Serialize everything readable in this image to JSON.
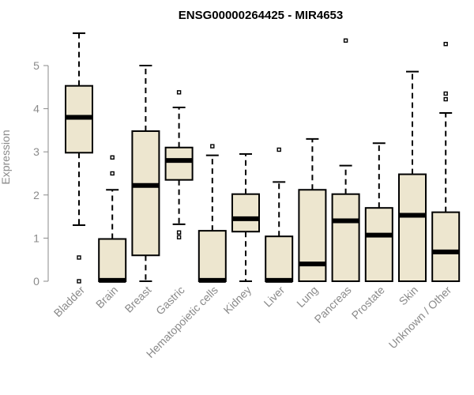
{
  "chart_data": {
    "type": "boxplot",
    "title": "ENSG00000264425 - MIR4653",
    "ylabel": "Expression",
    "xlabel": "",
    "ylim": [
      0,
      5.8
    ],
    "yticks": [
      0,
      1,
      2,
      3,
      4,
      5
    ],
    "grid": false,
    "box_fill": "#ede6cf",
    "categories": [
      "Bladder",
      "Brain",
      "Breast",
      "Gastric",
      "Hematopoietic cells",
      "Kidney",
      "Liver",
      "Lung",
      "Pancreas",
      "Prostate",
      "Skin",
      "Unknown / Other"
    ],
    "boxes": [
      {
        "category": "Bladder",
        "whisker_low": 1.3,
        "q1": 2.98,
        "median": 3.8,
        "q3": 4.53,
        "whisker_high": 5.75,
        "outliers": [
          0.55,
          0.0
        ]
      },
      {
        "category": "Brain",
        "whisker_low": 0.0,
        "q1": 0.0,
        "median": 0.02,
        "q3": 0.98,
        "whisker_high": 2.12,
        "outliers": [
          2.5,
          2.87
        ]
      },
      {
        "category": "Breast",
        "whisker_low": 0.0,
        "q1": 0.6,
        "median": 2.22,
        "q3": 3.48,
        "whisker_high": 5.0,
        "outliers": []
      },
      {
        "category": "Gastric",
        "whisker_low": 1.32,
        "q1": 2.35,
        "median": 2.8,
        "q3": 3.1,
        "whisker_high": 4.03,
        "outliers": [
          4.38,
          1.13,
          1.02
        ]
      },
      {
        "category": "Hematopoietic cells",
        "whisker_low": 0.0,
        "q1": 0.0,
        "median": 0.02,
        "q3": 1.17,
        "whisker_high": 2.92,
        "outliers": [
          3.13
        ]
      },
      {
        "category": "Kidney",
        "whisker_low": 0.0,
        "q1": 1.15,
        "median": 1.45,
        "q3": 2.02,
        "whisker_high": 2.95,
        "outliers": []
      },
      {
        "category": "Liver",
        "whisker_low": 0.0,
        "q1": 0.0,
        "median": 0.02,
        "q3": 1.04,
        "whisker_high": 2.3,
        "outliers": [
          3.05
        ]
      },
      {
        "category": "Lung",
        "whisker_low": 0.0,
        "q1": 0.0,
        "median": 0.4,
        "q3": 2.12,
        "whisker_high": 3.3,
        "outliers": []
      },
      {
        "category": "Pancreas",
        "whisker_low": 0.0,
        "q1": 0.0,
        "median": 1.4,
        "q3": 2.02,
        "whisker_high": 2.68,
        "outliers": [
          5.58
        ]
      },
      {
        "category": "Prostate",
        "whisker_low": 0.0,
        "q1": 0.0,
        "median": 1.07,
        "q3": 1.7,
        "whisker_high": 3.2,
        "outliers": []
      },
      {
        "category": "Skin",
        "whisker_low": 0.0,
        "q1": 0.0,
        "median": 1.53,
        "q3": 2.48,
        "whisker_high": 4.86,
        "outliers": []
      },
      {
        "category": "Unknown / Other",
        "whisker_low": 0.0,
        "q1": 0.0,
        "median": 0.68,
        "q3": 1.6,
        "whisker_high": 3.9,
        "outliers": [
          4.35,
          4.22,
          5.5
        ]
      }
    ]
  }
}
